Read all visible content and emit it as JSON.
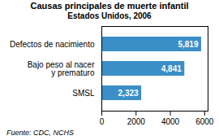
{
  "chart_data": {
    "type": "bar",
    "title": "Causas principales de muerte infantil",
    "subtitle": "Estados Unidos, 2006",
    "caption": "Fuente: CDC, NCHS",
    "categories": [
      "Defectos de nacimiento",
      "Bajo peso al nacer\ny prematuro",
      "SMSL"
    ],
    "values": [
      5819,
      4841,
      2323
    ],
    "value_labels": [
      "5,819",
      "4,841",
      "2,323"
    ],
    "color": "#3B8FC7",
    "orientation": "horizontal",
    "data_labels": true,
    "xlim": [
      0,
      6200
    ],
    "xticks": [
      0,
      2000,
      4000,
      6000
    ],
    "grid": false
  }
}
